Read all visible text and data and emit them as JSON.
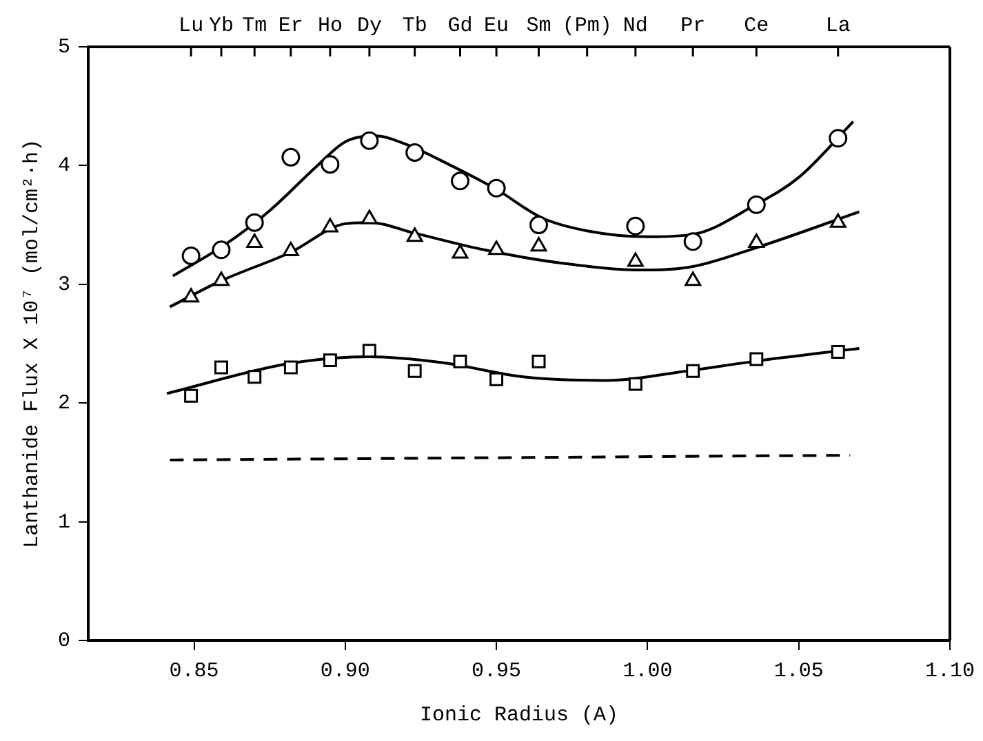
{
  "chart_data": {
    "type": "scatter",
    "xlabel": "Ionic Radius (A)",
    "ylabel": "Lanthanide Flux X 10⁷ (mol/cm²·h)",
    "xlim": [
      0.815,
      1.1
    ],
    "xticks": [
      0.85,
      {
        "value": 0.9,
        "label": "0.90"
      },
      0.95,
      {
        "value": 1.0,
        "label": "1.00"
      },
      1.05,
      {
        "value": 1.1,
        "label": "1.10"
      }
    ],
    "ylim": [
      0,
      5
    ],
    "yticks": [
      0,
      1,
      2,
      3,
      4,
      5
    ],
    "annotations": [
      {
        "text": "Lu",
        "x": 0.849
      },
      {
        "text": "Yb",
        "x": 0.859
      },
      {
        "text": "Tm",
        "x": 0.87
      },
      {
        "text": "Er",
        "x": 0.882
      },
      {
        "text": "Ho",
        "x": 0.895
      },
      {
        "text": "Dy",
        "x": 0.908
      },
      {
        "text": "Tb",
        "x": 0.923
      },
      {
        "text": "Gd",
        "x": 0.938
      },
      {
        "text": "Eu",
        "x": 0.95
      },
      {
        "text": "Sm",
        "x": 0.964
      },
      {
        "text": "(Pm)",
        "x": 0.98
      },
      {
        "text": "Nd",
        "x": 0.996
      },
      {
        "text": "Pr",
        "x": 1.015
      },
      {
        "text": "Ce",
        "x": 1.036
      },
      {
        "text": "La",
        "x": 1.063
      }
    ],
    "grid": false,
    "legend": false,
    "series": [
      {
        "marker": "circle",
        "color": "#000000",
        "x": [
          0.849,
          0.859,
          0.87,
          0.882,
          0.895,
          0.908,
          0.923,
          0.938,
          0.95,
          0.964,
          0.996,
          1.015,
          1.036,
          1.063
        ],
        "values": [
          3.24,
          3.29,
          3.52,
          4.07,
          4.01,
          4.21,
          4.11,
          3.87,
          3.81,
          3.5,
          3.49,
          3.36,
          3.67,
          4.23
        ]
      },
      {
        "marker": "triangle",
        "color": "#000000",
        "x": [
          0.849,
          0.859,
          0.87,
          0.882,
          0.895,
          0.908,
          0.923,
          0.938,
          0.95,
          0.964,
          0.996,
          1.015,
          1.036,
          1.063
        ],
        "values": [
          2.89,
          3.03,
          3.35,
          3.28,
          3.48,
          3.55,
          3.4,
          3.26,
          3.29,
          3.32,
          3.19,
          3.03,
          3.35,
          3.52
        ]
      },
      {
        "marker": "square",
        "color": "#000000",
        "x": [
          0.849,
          0.859,
          0.87,
          0.882,
          0.895,
          0.908,
          0.923,
          0.938,
          0.95,
          0.964,
          0.996,
          1.015,
          1.036,
          1.063
        ],
        "values": [
          2.06,
          2.3,
          2.22,
          2.3,
          2.36,
          2.44,
          2.27,
          2.35,
          2.2,
          2.35,
          2.16,
          2.27,
          2.37,
          2.43
        ]
      },
      {
        "type": "line",
        "marker": "none",
        "line_style": "solid",
        "color": "#000000",
        "x": [
          0.843,
          0.86,
          0.875,
          0.89,
          0.9,
          0.91,
          0.92,
          0.935,
          0.95,
          0.965,
          0.98,
          1.0,
          1.015,
          1.035,
          1.05,
          1.068
        ],
        "values": [
          3.07,
          3.33,
          3.62,
          3.98,
          4.2,
          4.25,
          4.18,
          4.0,
          3.8,
          3.56,
          3.45,
          3.4,
          3.42,
          3.66,
          3.9,
          4.37
        ]
      },
      {
        "type": "line",
        "marker": "none",
        "line_style": "solid",
        "color": "#000000",
        "x": [
          0.842,
          0.859,
          0.882,
          0.9,
          0.908,
          0.923,
          0.946,
          0.971,
          0.999,
          1.015,
          1.035,
          1.07
        ],
        "values": [
          2.81,
          3.03,
          3.27,
          3.51,
          3.52,
          3.43,
          3.29,
          3.18,
          3.12,
          3.15,
          3.3,
          3.61
        ]
      },
      {
        "type": "line",
        "marker": "none",
        "line_style": "solid",
        "color": "#000000",
        "x": [
          0.841,
          0.881,
          0.908,
          0.932,
          0.959,
          0.986,
          1.013,
          1.035,
          1.07
        ],
        "values": [
          2.08,
          2.33,
          2.39,
          2.34,
          2.22,
          2.19,
          2.27,
          2.35,
          2.46
        ]
      },
      {
        "type": "line",
        "marker": "none",
        "line_style": "dashed",
        "color": "#000000",
        "x": [
          0.842,
          1.067
        ],
        "values": [
          1.52,
          1.56
        ]
      }
    ]
  }
}
